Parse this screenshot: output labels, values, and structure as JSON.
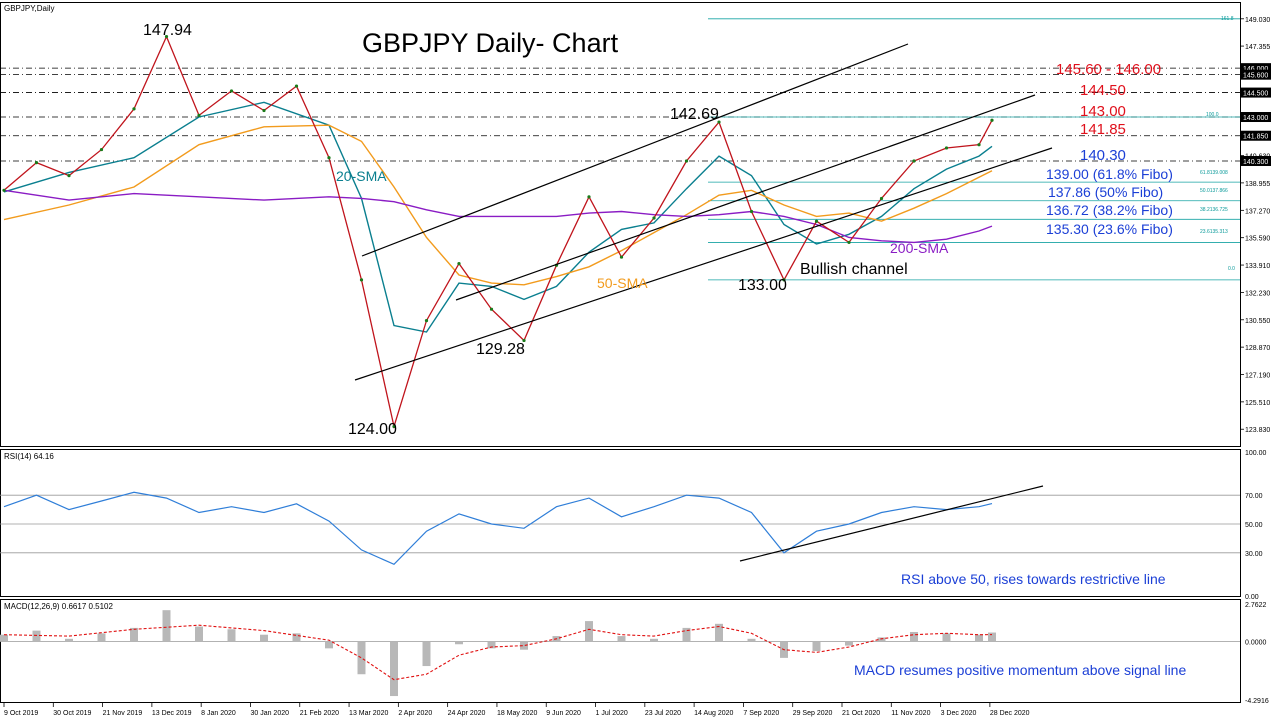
{
  "window": {
    "symbol_label": "GBPJPY,Daily",
    "chart_title": "GBPJPY Daily- Chart"
  },
  "chart_data": [
    {
      "panel": "price",
      "type": "line",
      "title": "GBPJPY Daily- Chart",
      "ylim": [
        122.8,
        150.0
      ],
      "y_ticks": [
        "149.030",
        "147.355",
        "145.600",
        "144.500",
        "143.000",
        "141.850",
        "140.630",
        "140.300",
        "138.955",
        "137.270",
        "135.590",
        "133.910",
        "132.230",
        "130.550",
        "128.870",
        "127.190",
        "125.510",
        "123.830"
      ],
      "x_labels": [
        "9 Oct 2019",
        "30 Oct 2019",
        "21 Nov 2019",
        "13 Dec 2019",
        "8 Jan 2020",
        "30 Jan 2020",
        "21 Feb 2020",
        "13 Mar 2020",
        "2 Apr 2020",
        "24 Apr 2020",
        "18 May 2020",
        "9 Jun 2020",
        "1 Jul 2020",
        "23 Jul 2020",
        "14 Aug 2020",
        "7 Sep 2020",
        "29 Sep 2020",
        "21 Oct 2020",
        "11 Nov 2020",
        "3 Dec 2020",
        "28 Dec 2020"
      ],
      "price_series": {
        "name": "GBPJPY",
        "x": [
          0,
          10,
          20,
          30,
          40,
          50,
          60,
          70,
          80,
          90,
          100,
          110,
          120,
          130,
          140,
          150,
          160,
          170,
          180,
          190,
          200,
          210,
          220,
          230,
          240,
          250,
          260,
          270,
          280,
          290,
          300,
          304
        ],
        "y": [
          138.5,
          140.2,
          139.4,
          141.0,
          143.5,
          147.94,
          143.1,
          144.6,
          143.4,
          144.9,
          140.5,
          133.0,
          124.0,
          130.5,
          134.0,
          131.2,
          129.28,
          133.9,
          138.1,
          134.4,
          136.8,
          140.3,
          142.69,
          137.2,
          133.0,
          136.6,
          135.3,
          138.0,
          140.3,
          141.1,
          141.3,
          142.8
        ]
      },
      "series": [
        {
          "name": "20-SMA",
          "color": "#0a7f8f",
          "x": [
            0,
            20,
            40,
            60,
            80,
            100,
            110,
            120,
            130,
            140,
            150,
            160,
            170,
            180,
            190,
            200,
            210,
            220,
            230,
            240,
            250,
            260,
            270,
            280,
            290,
            300,
            304
          ],
          "y": [
            138.4,
            139.6,
            140.5,
            143.0,
            143.9,
            142.5,
            138.0,
            130.2,
            129.8,
            132.8,
            132.6,
            131.8,
            132.6,
            134.7,
            136.1,
            136.5,
            138.6,
            140.6,
            139.4,
            136.4,
            135.2,
            135.8,
            136.9,
            138.6,
            139.8,
            140.6,
            141.2
          ]
        },
        {
          "name": "50-SMA",
          "color": "#f29b1d",
          "x": [
            0,
            20,
            40,
            60,
            80,
            100,
            110,
            120,
            130,
            140,
            150,
            160,
            170,
            180,
            190,
            200,
            210,
            220,
            230,
            240,
            250,
            260,
            270,
            280,
            290,
            300,
            304
          ],
          "y": [
            136.7,
            137.6,
            138.7,
            141.3,
            142.4,
            142.5,
            141.5,
            138.7,
            135.6,
            133.3,
            132.8,
            132.7,
            133.2,
            133.8,
            134.8,
            135.9,
            137.0,
            138.2,
            138.5,
            137.6,
            136.9,
            137.1,
            136.6,
            137.4,
            138.3,
            139.3,
            139.7
          ]
        },
        {
          "name": "200-SMA",
          "color": "#8a1cc4",
          "x": [
            0,
            20,
            40,
            60,
            80,
            100,
            110,
            120,
            130,
            140,
            150,
            160,
            170,
            180,
            190,
            200,
            210,
            220,
            230,
            240,
            250,
            260,
            270,
            280,
            290,
            300,
            304
          ],
          "y": [
            138.5,
            137.9,
            138.3,
            138.1,
            137.9,
            138.1,
            138.0,
            137.8,
            137.3,
            136.9,
            136.9,
            136.9,
            136.9,
            137.1,
            137.2,
            137.0,
            136.9,
            137.0,
            137.2,
            136.9,
            136.4,
            135.6,
            135.4,
            135.3,
            135.5,
            136.0,
            136.3
          ]
        }
      ],
      "annotations": [
        "147.94",
        "142.69",
        "129.28",
        "124.00",
        "133.00",
        "Bullish channel",
        "20-SMA",
        "50-SMA",
        "200-SMA"
      ],
      "levels": [
        {
          "label": "145.60 - 146.00",
          "value": 145.8,
          "color": "#e0101c"
        },
        {
          "label": "144.50",
          "value": 144.5,
          "color": "#e0101c"
        },
        {
          "label": "143.00",
          "value": 143.0,
          "color": "#e0101c"
        },
        {
          "label": "141.85",
          "value": 141.85,
          "color": "#e0101c"
        },
        {
          "label": "140.30",
          "value": 140.3,
          "color": "#1b3fd6"
        },
        {
          "label": "139.00 (61.8% Fibo)",
          "value": 139.0,
          "color": "#1b3fd6"
        },
        {
          "label": "137.86 (50% Fibo)",
          "value": 137.86,
          "color": "#1b3fd6"
        },
        {
          "label": "136.72 (38.2% Fibo)",
          "value": 136.72,
          "color": "#1b3fd6"
        },
        {
          "label": "135.30 (23.6% Fibo)",
          "value": 135.3,
          "color": "#1b3fd6"
        }
      ],
      "fibo_small_labels": [
        "161.8",
        "100.0",
        "61.8139.008",
        "50.0137.866",
        "38.2136.725",
        "23.6135.313",
        "0.0"
      ],
      "price_tags": [
        "146.000",
        "145.600",
        "144.500",
        "143.000",
        "141.850",
        "140.300"
      ]
    },
    {
      "panel": "rsi",
      "type": "line",
      "title": "RSI(14) 64.16",
      "ylim": [
        0,
        100
      ],
      "y_ticks": [
        "100.00",
        "70.00",
        "50.00",
        "30.00",
        "0.00"
      ],
      "levels": [
        70,
        50,
        30
      ],
      "series": [
        {
          "color": "#2f7ed8",
          "x": [
            0,
            10,
            20,
            30,
            40,
            50,
            60,
            70,
            80,
            90,
            100,
            110,
            120,
            130,
            140,
            150,
            160,
            170,
            180,
            190,
            200,
            210,
            220,
            230,
            240,
            250,
            260,
            270,
            280,
            290,
            300,
            304
          ],
          "y": [
            62,
            70,
            60,
            66,
            72,
            68,
            58,
            62,
            58,
            64,
            52,
            32,
            22,
            45,
            57,
            50,
            47,
            62,
            68,
            55,
            62,
            70,
            68,
            58,
            30,
            45,
            50,
            58,
            62,
            60,
            62,
            64.16
          ]
        }
      ],
      "annotation": "RSI above 50, rises towards restrictive line"
    },
    {
      "panel": "macd",
      "type": "bar",
      "title": "MACD(12,26,9) 0.6617 0.5102",
      "ylim": [
        -4.29,
        2.9
      ],
      "y_ticks": [
        "2.7622",
        "0.0000",
        "-4.2916"
      ],
      "histogram": {
        "x": [
          0,
          10,
          20,
          30,
          40,
          50,
          60,
          70,
          80,
          90,
          100,
          110,
          120,
          130,
          140,
          150,
          160,
          170,
          180,
          190,
          200,
          210,
          220,
          230,
          240,
          250,
          260,
          270,
          280,
          290,
          300,
          304
        ],
        "values": [
          0.5,
          0.8,
          0.2,
          0.6,
          1.0,
          2.3,
          1.1,
          0.9,
          0.5,
          0.6,
          -0.5,
          -2.4,
          -4.0,
          -1.8,
          -0.2,
          -0.5,
          -0.6,
          0.4,
          1.5,
          0.4,
          0.2,
          1.0,
          1.3,
          0.2,
          -1.2,
          -0.7,
          -0.3,
          0.3,
          0.7,
          0.6,
          0.5,
          0.66
        ]
      },
      "signal": {
        "name": "signal",
        "color": "#e01010",
        "x": [
          0,
          20,
          40,
          60,
          80,
          100,
          110,
          120,
          130,
          140,
          150,
          160,
          170,
          180,
          190,
          200,
          210,
          220,
          230,
          240,
          250,
          260,
          270,
          280,
          290,
          300,
          304
        ],
        "y": [
          0.5,
          0.4,
          0.9,
          1.2,
          0.8,
          0.1,
          -1.2,
          -2.8,
          -2.4,
          -1.0,
          -0.4,
          -0.3,
          0.2,
          0.9,
          0.5,
          0.4,
          0.8,
          1.1,
          0.6,
          -0.6,
          -0.8,
          -0.4,
          0.2,
          0.5,
          0.6,
          0.5,
          0.51
        ]
      },
      "annotation": "MACD resumes positive momentum above signal line"
    }
  ]
}
